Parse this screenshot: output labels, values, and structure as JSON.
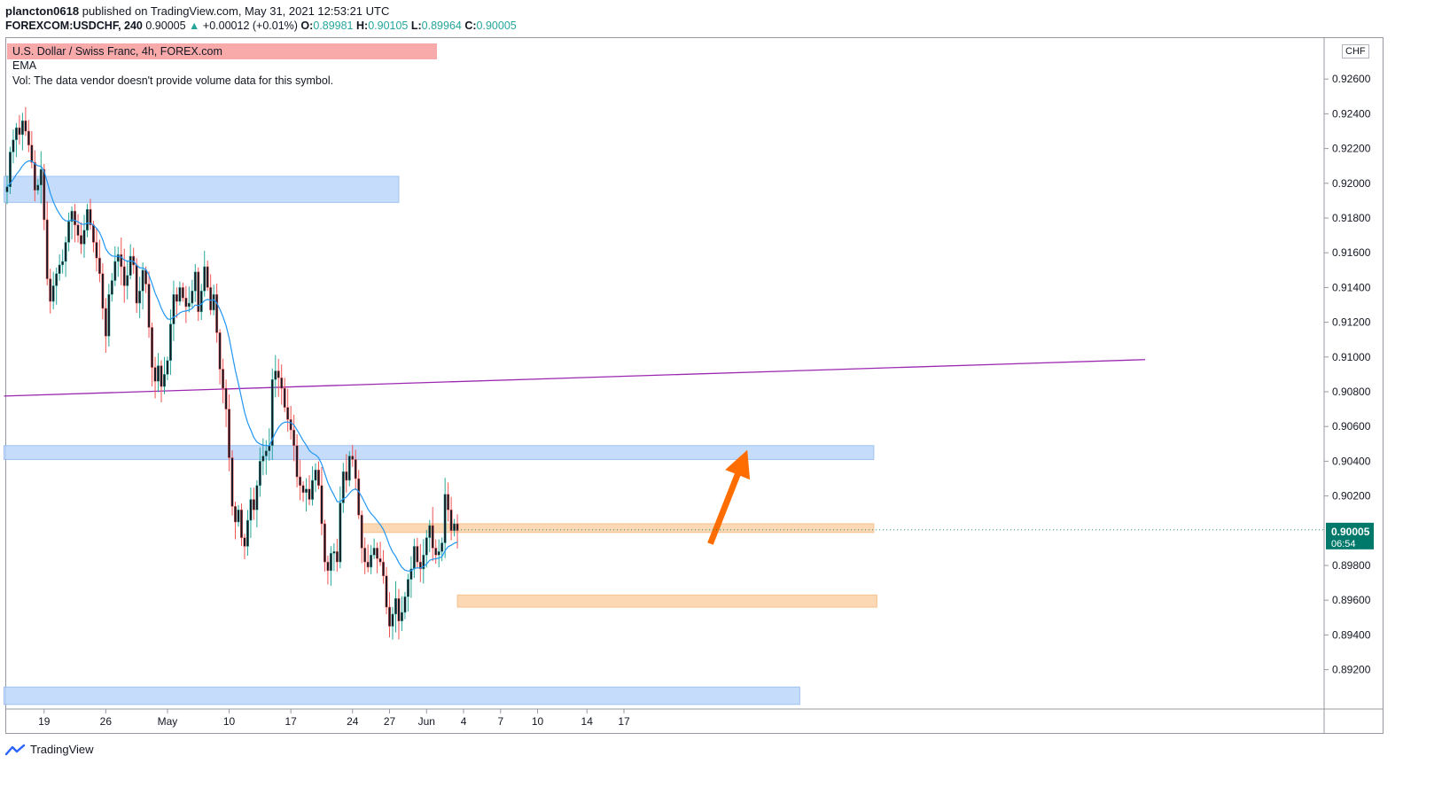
{
  "header": {
    "user": "plancton0618",
    "published": "published on TradingView.com, May 31, 2021 12:53:21 UTC",
    "symbol": "FOREXCOM:USDCHF, 240",
    "last": "0.90005",
    "change": "+0.00012 (+0.01%)",
    "o_label": "O:",
    "o": "0.89981",
    "h_label": "H:",
    "h": "0.90105",
    "l_label": "L:",
    "l": "0.89964",
    "c_label": "C:",
    "c": "0.90005"
  },
  "legend": {
    "title": "U.S. Dollar / Swiss Franc, 4h, FOREX.com",
    "ema": "EMA",
    "vol": "Vol: The data vendor doesn't provide volume data for this symbol."
  },
  "currency_badge": "CHF",
  "price_label": {
    "value": "0.90005",
    "countdown": "06:54"
  },
  "footer": {
    "brand": "TradingView"
  },
  "colors": {
    "up": "#26a69a",
    "down": "#ef5350",
    "candle_body": "#131722",
    "ema": "#2196f3",
    "trendline": "#9c27b0",
    "arrow": "#ff6d00",
    "zone_blue": "#bbd6fb",
    "zone_orange": "#fcd2a8",
    "price_tag": "#00796b"
  },
  "chart_data": {
    "type": "candlestick",
    "symbol": "USDCHF",
    "timeframe": "4h",
    "y_range": [
      0.8905,
      0.9283
    ],
    "y_ticks": [
      "0.92600",
      "0.92400",
      "0.92200",
      "0.92000",
      "0.91800",
      "0.91600",
      "0.91400",
      "0.91200",
      "0.91000",
      "0.90800",
      "0.90600",
      "0.90400",
      "0.90200",
      "0.89800",
      "0.89600",
      "0.89400",
      "0.89200"
    ],
    "x_ticks": [
      {
        "label": "19",
        "bar": 12
      },
      {
        "label": "26",
        "bar": 32
      },
      {
        "label": "May",
        "bar": 52
      },
      {
        "label": "10",
        "bar": 72
      },
      {
        "label": "17",
        "bar": 92
      },
      {
        "label": "24",
        "bar": 112
      },
      {
        "label": "27",
        "bar": 124
      },
      {
        "label": "Jun",
        "bar": 136
      },
      {
        "label": "4",
        "bar": 148
      },
      {
        "label": "7",
        "bar": 160
      },
      {
        "label": "10",
        "bar": 172
      },
      {
        "label": "14",
        "bar": 188
      },
      {
        "label": "17",
        "bar": 200
      }
    ],
    "closes": [
      0.9198,
      0.9218,
      0.9225,
      0.9232,
      0.9228,
      0.9236,
      0.923,
      0.9222,
      0.9212,
      0.9196,
      0.9199,
      0.9208,
      0.9179,
      0.9145,
      0.9132,
      0.9141,
      0.9148,
      0.9153,
      0.9155,
      0.9166,
      0.9178,
      0.9184,
      0.9176,
      0.917,
      0.9165,
      0.9173,
      0.9185,
      0.9176,
      0.9166,
      0.9157,
      0.9148,
      0.9128,
      0.9112,
      0.9136,
      0.9144,
      0.9155,
      0.9159,
      0.9152,
      0.9141,
      0.9147,
      0.9158,
      0.9153,
      0.9131,
      0.9138,
      0.915,
      0.9142,
      0.9117,
      0.9094,
      0.9086,
      0.9095,
      0.9083,
      0.909,
      0.9098,
      0.9119,
      0.9136,
      0.9132,
      0.914,
      0.9134,
      0.9129,
      0.9131,
      0.9138,
      0.9149,
      0.9126,
      0.9138,
      0.9152,
      0.914,
      0.9127,
      0.9136,
      0.9114,
      0.9093,
      0.9082,
      0.907,
      0.9042,
      0.9014,
      0.9005,
      0.9012,
      0.8996,
      0.8991,
      0.9006,
      0.9018,
      0.9012,
      0.9026,
      0.904,
      0.9043,
      0.9046,
      0.9049,
      0.9087,
      0.9092,
      0.9088,
      0.9082,
      0.9071,
      0.9064,
      0.9058,
      0.9049,
      0.9031,
      0.9026,
      0.9022,
      0.9024,
      0.9018,
      0.9029,
      0.9035,
      0.9026,
      0.9004,
      0.8982,
      0.8977,
      0.8987,
      0.8988,
      0.8982,
      0.9016,
      0.9034,
      0.9029,
      0.9043,
      0.9041,
      0.903,
      0.9009,
      0.899,
      0.8982,
      0.8979,
      0.8986,
      0.899,
      0.8984,
      0.8982,
      0.8974,
      0.8956,
      0.8945,
      0.8952,
      0.8961,
      0.8948,
      0.8953,
      0.8962,
      0.8972,
      0.8978,
      0.8991,
      0.8982,
      0.8978,
      0.8986,
      0.8996,
      0.9003,
      0.899,
      0.8986,
      0.8988,
      0.8993,
      0.9021,
      0.9012,
      0.9,
      0.9004,
      0.9
    ],
    "ema_length_note": "EMA",
    "zones": [
      {
        "color": "blue",
        "price_top": 0.9204,
        "price_bottom": 0.9189,
        "bar_start": -1,
        "bar_end": 127
      },
      {
        "color": "blue",
        "price_top": 0.9049,
        "price_bottom": 0.9041,
        "bar_start": -1,
        "bar_end": 281
      },
      {
        "color": "orange",
        "price_top": 0.9004,
        "price_bottom": 0.8999,
        "bar_start": 115,
        "bar_end": 281
      },
      {
        "color": "orange",
        "price_top": 0.8963,
        "price_bottom": 0.8956,
        "bar_start": 146,
        "bar_end": 282
      },
      {
        "color": "blue",
        "price_top": 0.891,
        "price_bottom": 0.89,
        "bar_start": -1,
        "bar_end": 257
      }
    ],
    "trendline": {
      "from": {
        "bar": -1,
        "price": 0.90775
      },
      "to": {
        "bar": 369,
        "price": 0.90985
      }
    },
    "arrow": {
      "from": {
        "bar": 228,
        "price": 0.89925
      },
      "to": {
        "bar": 240,
        "price": 0.90465
      }
    },
    "last_price": 0.90005
  }
}
